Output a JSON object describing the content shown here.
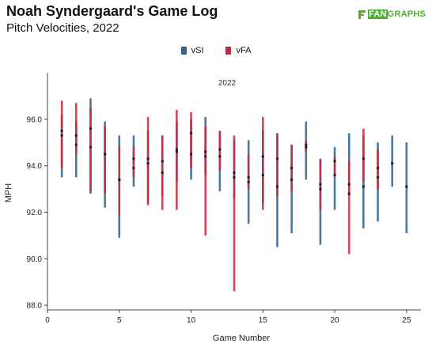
{
  "header": {
    "title": "Noah Syndergaard's Game Log",
    "subtitle": "Pitch Velocities, 2022",
    "logo_fan": "FAN",
    "logo_graphs": "GRAPHS"
  },
  "colors": {
    "vSI": "#2f5f8f",
    "vFA": "#c8283a",
    "dot": "#222222",
    "axis": "#444444",
    "brand": "#4caf2e"
  },
  "chart_data": {
    "type": "range",
    "panel_title": "2022",
    "xlabel": "Game Number",
    "ylabel": "MPH",
    "xlim": [
      0,
      26
    ],
    "ylim": [
      87.8,
      98.0
    ],
    "x_ticks": [
      0,
      5,
      10,
      15,
      20,
      25
    ],
    "y_ticks": [
      88.0,
      90.0,
      92.0,
      94.0,
      96.0
    ],
    "legend": {
      "placement": "top-center",
      "entries": [
        "vSI",
        "vFA"
      ]
    },
    "series": [
      {
        "name": "vSI",
        "points": [
          {
            "game": 1,
            "min": 93.5,
            "max": 96.2,
            "avg": 95.3
          },
          {
            "game": 2,
            "min": 93.5,
            "max": 95.9,
            "avg": 95.3
          },
          {
            "game": 3,
            "min": 92.8,
            "max": 96.9,
            "avg": 94.8
          },
          {
            "game": 4,
            "min": 92.2,
            "max": 95.9,
            "avg": 94.5
          },
          {
            "game": 5,
            "min": 90.9,
            "max": 95.3,
            "avg": 93.4
          },
          {
            "game": 6,
            "min": 93.1,
            "max": 95.3,
            "avg": 94.3
          },
          {
            "game": 7,
            "min": 92.4,
            "max": 95.5,
            "avg": 94.3
          },
          {
            "game": 8,
            "min": 92.7,
            "max": 95.3,
            "avg": 93.7
          },
          {
            "game": 9,
            "min": 93.3,
            "max": 95.9,
            "avg": 94.6
          },
          {
            "game": 10,
            "min": 93.4,
            "max": 96.0,
            "avg": 94.5
          },
          {
            "game": 11,
            "min": 93.6,
            "max": 96.1,
            "avg": 94.6
          },
          {
            "game": 12,
            "min": 92.9,
            "max": 95.5,
            "avg": 94.4
          },
          {
            "game": 13,
            "min": 92.6,
            "max": 95.1,
            "avg": 93.5
          },
          {
            "game": 14,
            "min": 91.5,
            "max": 95.1,
            "avg": 93.3
          },
          {
            "game": 15,
            "min": 92.4,
            "max": 95.5,
            "avg": 93.6
          },
          {
            "game": 16,
            "min": 90.5,
            "max": 95.4,
            "avg": 93.1
          },
          {
            "game": 17,
            "min": 91.1,
            "max": 94.9,
            "avg": 93.4
          },
          {
            "game": 18,
            "min": 93.4,
            "max": 95.9,
            "avg": 94.8
          },
          {
            "game": 19,
            "min": 90.6,
            "max": 94.3,
            "avg": 93.2
          },
          {
            "game": 20,
            "min": 92.1,
            "max": 94.8,
            "avg": 93.6
          },
          {
            "game": 21,
            "min": 92.7,
            "max": 95.4,
            "avg": 93.2
          },
          {
            "game": 22,
            "min": 91.3,
            "max": 95.3,
            "avg": 93.1
          },
          {
            "game": 23,
            "min": 91.6,
            "max": 95.0,
            "avg": 93.9
          },
          {
            "game": 24,
            "min": 93.1,
            "max": 95.3,
            "avg": 94.1
          },
          {
            "game": 25,
            "min": 91.1,
            "max": 95.0,
            "avg": 93.1
          }
        ]
      },
      {
        "name": "vFA",
        "points": [
          {
            "game": 1,
            "min": 93.9,
            "max": 96.8,
            "avg": 95.5
          },
          {
            "game": 2,
            "min": 94.5,
            "max": 96.7,
            "avg": 94.9
          },
          {
            "game": 3,
            "min": 92.9,
            "max": 96.5,
            "avg": 95.6
          },
          {
            "game": 4,
            "min": 92.8,
            "max": 95.7,
            "avg": 94.5
          },
          {
            "game": 5,
            "min": 91.9,
            "max": 94.8,
            "avg": 93.4
          },
          {
            "game": 6,
            "min": 93.5,
            "max": 94.8,
            "avg": 93.9
          },
          {
            "game": 7,
            "min": 92.3,
            "max": 96.1,
            "avg": 94.1
          },
          {
            "game": 8,
            "min": 92.1,
            "max": 95.3,
            "avg": 94.2
          },
          {
            "game": 9,
            "min": 92.1,
            "max": 96.4,
            "avg": 94.7
          },
          {
            "game": 10,
            "min": 93.9,
            "max": 96.3,
            "avg": 95.4
          },
          {
            "game": 11,
            "min": 91.0,
            "max": 95.7,
            "avg": 94.4
          },
          {
            "game": 12,
            "min": 93.8,
            "max": 95.5,
            "avg": 94.7
          },
          {
            "game": 13,
            "min": 88.6,
            "max": 95.3,
            "avg": 93.7
          },
          {
            "game": 14,
            "min": 93.0,
            "max": 94.5,
            "avg": 93.5
          },
          {
            "game": 15,
            "min": 92.1,
            "max": 96.1,
            "avg": 94.4
          },
          {
            "game": 16,
            "min": 92.7,
            "max": 95.4,
            "avg": 94.3
          },
          {
            "game": 17,
            "min": 92.9,
            "max": 94.9,
            "avg": 93.9
          },
          {
            "game": 18,
            "min": 94.6,
            "max": 95.1,
            "avg": 94.9
          },
          {
            "game": 19,
            "min": 92.1,
            "max": 94.3,
            "avg": 93.0
          },
          {
            "game": 20,
            "min": 93.6,
            "max": 94.4,
            "avg": 94.2
          },
          {
            "game": 21,
            "min": 90.2,
            "max": 94.2,
            "avg": 92.8
          },
          {
            "game": 22,
            "min": 93.3,
            "max": 95.6,
            "avg": 94.3
          },
          {
            "game": 23,
            "min": 93.0,
            "max": 94.7,
            "avg": 93.5
          }
        ]
      }
    ]
  }
}
